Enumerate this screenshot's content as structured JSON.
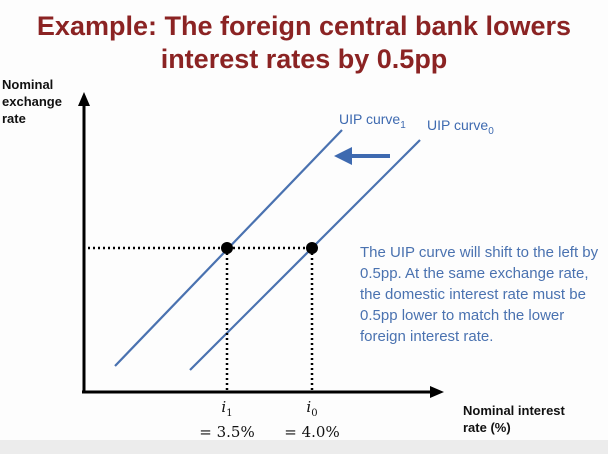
{
  "title_line1": "Example: The foreign central bank lowers",
  "title_line2": "interest rates by 0.5pp",
  "colors": {
    "title": "#8b2323",
    "curve": "#4a72b0",
    "note": "#4a72b0"
  },
  "chart_data": {
    "type": "line",
    "ylabel": "Nominal exchange rate",
    "xlabel": "Nominal interest rate (%)",
    "series": [
      {
        "name": "UIP curve",
        "subscript": "1",
        "position": "left"
      },
      {
        "name": "UIP curve",
        "subscript": "0",
        "position": "right"
      }
    ],
    "points": [
      {
        "symbol": "i",
        "subscript": "1",
        "value_label": "= 3.5%",
        "x": 3.5
      },
      {
        "symbol": "i",
        "subscript": "0",
        "value_label": "= 4.0%",
        "x": 4.0
      }
    ],
    "shift": {
      "from": 4.0,
      "to": 3.5,
      "direction": "left"
    },
    "annotation": "The UIP curve will shift to the left by 0.5pp. At the same exchange rate, the domestic interest rate must be 0.5pp lower to match the lower foreign interest rate."
  }
}
